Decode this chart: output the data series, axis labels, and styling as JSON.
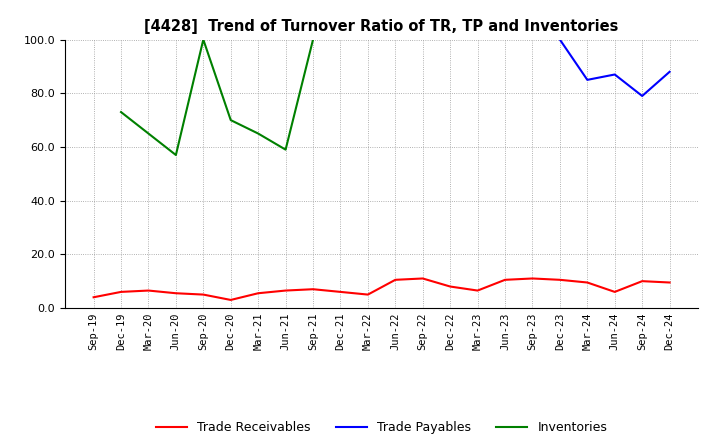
{
  "title": "[4428]  Trend of Turnover Ratio of TR, TP and Inventories",
  "xlabels": [
    "Sep-19",
    "Dec-19",
    "Mar-20",
    "Jun-20",
    "Sep-20",
    "Dec-20",
    "Mar-21",
    "Jun-21",
    "Sep-21",
    "Dec-21",
    "Mar-22",
    "Jun-22",
    "Sep-22",
    "Dec-22",
    "Mar-23",
    "Jun-23",
    "Sep-23",
    "Dec-23",
    "Mar-24",
    "Jun-24",
    "Sep-24",
    "Dec-24"
  ],
  "ylim": [
    0.0,
    100.0
  ],
  "yticks": [
    0.0,
    20.0,
    40.0,
    60.0,
    80.0,
    100.0
  ],
  "trade_receivables": [
    4.0,
    6.0,
    6.5,
    5.5,
    5.0,
    3.0,
    5.5,
    6.5,
    7.0,
    6.0,
    5.0,
    10.5,
    11.0,
    8.0,
    6.5,
    10.5,
    11.0,
    10.5,
    9.5,
    6.0,
    10.0,
    9.5
  ],
  "trade_payables": [
    null,
    null,
    null,
    null,
    null,
    null,
    null,
    null,
    null,
    null,
    null,
    null,
    null,
    null,
    null,
    null,
    null,
    100.0,
    85.0,
    87.0,
    79.0,
    88.0
  ],
  "inventories": [
    null,
    73.0,
    65.0,
    57.0,
    100.0,
    70.0,
    65.0,
    59.0,
    100.0,
    null,
    null,
    null,
    null,
    null,
    null,
    null,
    null,
    null,
    null,
    null,
    null,
    null
  ],
  "tr_color": "#ff0000",
  "tp_color": "#0000ff",
  "inv_color": "#008000",
  "legend_labels": [
    "Trade Receivables",
    "Trade Payables",
    "Inventories"
  ],
  "bg_color": "#ffffff",
  "grid_color": "#999999"
}
